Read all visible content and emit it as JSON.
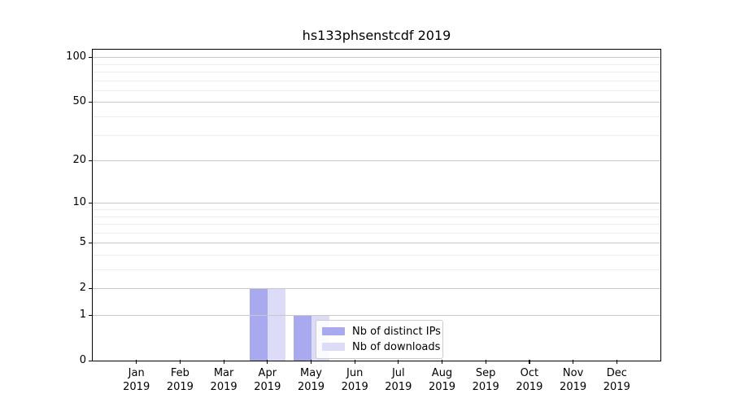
{
  "chart_data": {
    "type": "bar",
    "title": "hs133phsenstcdf 2019",
    "categories": [
      "Jan",
      "Feb",
      "Mar",
      "Apr",
      "May",
      "Jun",
      "Jul",
      "Aug",
      "Sep",
      "Oct",
      "Nov",
      "Dec"
    ],
    "x_year_label": "2019",
    "series": [
      {
        "name": "Nb of distinct IPs",
        "color": "#a9a9ef",
        "values": [
          0,
          0,
          0,
          2,
          1,
          0,
          0,
          0,
          0,
          0,
          0,
          0
        ]
      },
      {
        "name": "Nb of downloads",
        "color": "#dcdcf8",
        "values": [
          0,
          0,
          0,
          2,
          1,
          0,
          0,
          0,
          0,
          0,
          0,
          0
        ]
      }
    ],
    "yscale": "log1p",
    "ylim": [
      0,
      112
    ],
    "ytick_values": [
      100,
      50,
      20,
      10,
      5,
      2,
      1,
      0
    ],
    "yminor_values": [
      3,
      4,
      6,
      7,
      8,
      9,
      30,
      40,
      60,
      70,
      80,
      90
    ],
    "xlabel": "",
    "ylabel": "",
    "grid": "horizontal",
    "legend": {
      "position": "inside-lower-center",
      "labels": [
        "Nb of distinct IPs",
        "Nb of downloads"
      ]
    }
  }
}
